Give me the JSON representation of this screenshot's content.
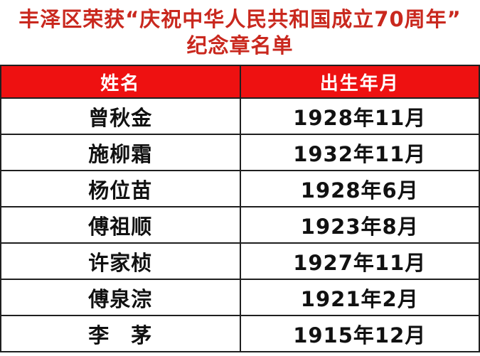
{
  "page": {
    "title_line1": "丰泽区荣获“庆祝中华人民共和国成立70周年”",
    "title_line2": "纪念章名单"
  },
  "colors": {
    "title_red": "#c9281e",
    "header_bg": "#ee1111",
    "header_text": "#ffffff",
    "body_text": "#111111",
    "grid_line": "#1f1f1f"
  },
  "table": {
    "columns": [
      {
        "label": "姓名"
      },
      {
        "label": "出生年月"
      }
    ],
    "rows": [
      {
        "name": "曾秋金",
        "birth": "1928年11月"
      },
      {
        "name": "施柳霜",
        "birth": "1932年11月"
      },
      {
        "name": "杨位苗",
        "birth": "1928年6月"
      },
      {
        "name": "傅祖顺",
        "birth": "1923年8月"
      },
      {
        "name": "许家桢",
        "birth": "1927年11月"
      },
      {
        "name": "傅泉淙",
        "birth": "1921年2月"
      },
      {
        "name": "李　茅",
        "birth": "1915年12月"
      }
    ]
  }
}
